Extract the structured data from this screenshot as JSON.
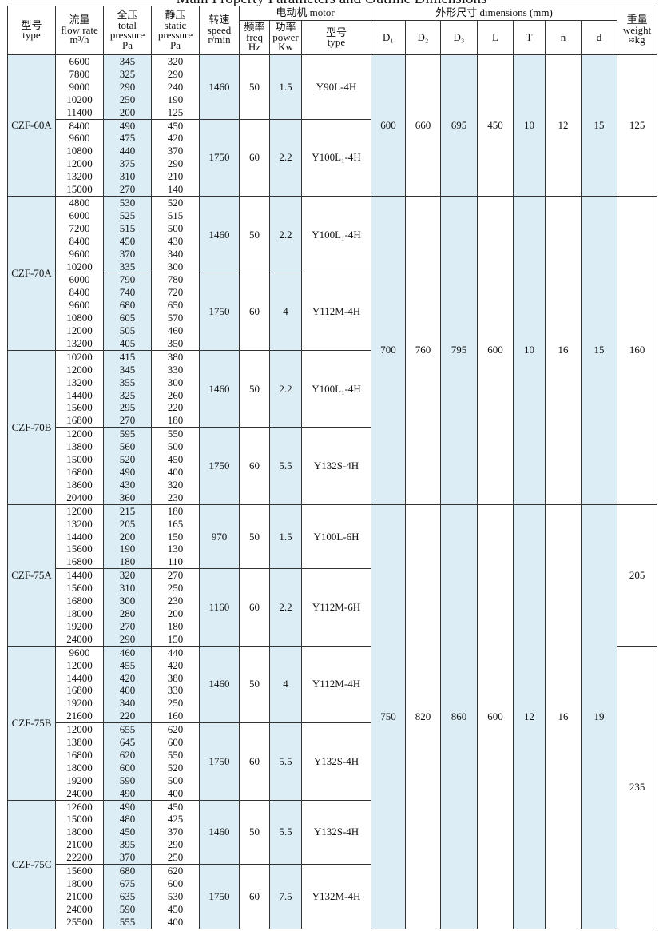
{
  "title": "Main Property Parameters and Outline Dimensions",
  "header": {
    "type": [
      "型号",
      "type"
    ],
    "flow": [
      "流量",
      "flow rate",
      "m³/h"
    ],
    "total": [
      "全压",
      "total",
      "pressure",
      "Pa"
    ],
    "static": [
      "静压",
      "static",
      "pressure",
      "Pa"
    ],
    "speed": [
      "转速",
      "speed",
      "r/min"
    ],
    "motor": "电动机  motor",
    "freq": [
      "频率",
      "freq",
      "Hz"
    ],
    "power": [
      "功率",
      "power",
      "Kw"
    ],
    "motor_type": [
      "型号",
      "type"
    ],
    "dimensions": "外形尺寸     dimensions (mm)",
    "dim_cols": [
      "D₁",
      "D₂",
      "D₃",
      "L",
      "T",
      "n",
      "d"
    ],
    "weight": [
      "重量",
      "weight",
      "≈kg"
    ]
  },
  "groups": [
    {
      "dimensions": [
        600,
        660,
        695,
        450,
        10,
        12,
        15
      ],
      "weights": [
        {
          "weight": 125,
          "models": [
            {
              "type": "CZF-60A",
              "speeds": [
                {
                  "flow": [
                    6600,
                    7800,
                    9000,
                    10200,
                    11400
                  ],
                  "total": [
                    345,
                    325,
                    290,
                    250,
                    200
                  ],
                  "static": [
                    320,
                    290,
                    240,
                    190,
                    125
                  ],
                  "speed": 1460,
                  "freq": 50,
                  "power": 1.5,
                  "motor": "Y90L-4H"
                },
                {
                  "flow": [
                    8400,
                    9600,
                    10800,
                    12000,
                    13200,
                    15000
                  ],
                  "total": [
                    490,
                    475,
                    440,
                    375,
                    310,
                    270
                  ],
                  "static": [
                    450,
                    420,
                    370,
                    290,
                    210,
                    140
                  ],
                  "speed": 1750,
                  "freq": 60,
                  "power": 2.2,
                  "motor": "Y100L₁-4H"
                }
              ]
            }
          ]
        }
      ]
    },
    {
      "dimensions": [
        700,
        760,
        795,
        600,
        10,
        16,
        15
      ],
      "weights": [
        {
          "weight": 160,
          "models": [
            {
              "type": "CZF-70A",
              "speeds": [
                {
                  "flow": [
                    4800,
                    6000,
                    7200,
                    8400,
                    9600,
                    10200
                  ],
                  "total": [
                    530,
                    525,
                    515,
                    450,
                    370,
                    335
                  ],
                  "static": [
                    520,
                    515,
                    500,
                    430,
                    340,
                    300
                  ],
                  "speed": 1460,
                  "freq": 50,
                  "power": 2.2,
                  "motor": "Y100L₁-4H"
                },
                {
                  "flow": [
                    6000,
                    8400,
                    9600,
                    10800,
                    12000,
                    13200
                  ],
                  "total": [
                    790,
                    740,
                    680,
                    605,
                    505,
                    405
                  ],
                  "static": [
                    780,
                    720,
                    650,
                    570,
                    460,
                    350
                  ],
                  "speed": 1750,
                  "freq": 60,
                  "power": 4,
                  "motor": "Y112M-4H"
                }
              ]
            },
            {
              "type": "CZF-70B",
              "speeds": [
                {
                  "flow": [
                    10200,
                    12000,
                    13200,
                    14400,
                    15600,
                    16800
                  ],
                  "total": [
                    415,
                    345,
                    355,
                    325,
                    295,
                    270
                  ],
                  "static": [
                    380,
                    330,
                    300,
                    260,
                    220,
                    180
                  ],
                  "speed": 1460,
                  "freq": 50,
                  "power": 2.2,
                  "motor": "Y100L₁-4H"
                },
                {
                  "flow": [
                    12000,
                    13800,
                    15000,
                    16800,
                    18600,
                    20400
                  ],
                  "total": [
                    595,
                    560,
                    520,
                    490,
                    430,
                    360
                  ],
                  "static": [
                    550,
                    500,
                    450,
                    400,
                    320,
                    230
                  ],
                  "speed": 1750,
                  "freq": 60,
                  "power": 5.5,
                  "motor": "Y132S-4H"
                }
              ]
            }
          ]
        }
      ]
    },
    {
      "dimensions": [
        750,
        820,
        860,
        600,
        12,
        16,
        19
      ],
      "weights": [
        {
          "weight": 205,
          "models": [
            {
              "type": "CZF-75A",
              "speeds": [
                {
                  "flow": [
                    12000,
                    13200,
                    14400,
                    15600,
                    16800
                  ],
                  "total": [
                    215,
                    205,
                    200,
                    190,
                    180
                  ],
                  "static": [
                    180,
                    165,
                    150,
                    130,
                    110
                  ],
                  "speed": 970,
                  "freq": 50,
                  "power": 1.5,
                  "motor": "Y100L-6H"
                },
                {
                  "flow": [
                    14400,
                    15600,
                    16800,
                    18000,
                    19200,
                    24000
                  ],
                  "total": [
                    320,
                    310,
                    300,
                    280,
                    270,
                    290
                  ],
                  "static": [
                    270,
                    250,
                    230,
                    200,
                    180,
                    150
                  ],
                  "speed": 1160,
                  "freq": 60,
                  "power": 2.2,
                  "motor": "Y112M-6H"
                }
              ]
            }
          ]
        },
        {
          "weight": 235,
          "models": [
            {
              "type": "CZF-75B",
              "speeds": [
                {
                  "flow": [
                    9600,
                    12000,
                    14400,
                    16800,
                    19200,
                    21600
                  ],
                  "total": [
                    460,
                    455,
                    420,
                    400,
                    340,
                    220
                  ],
                  "static": [
                    440,
                    420,
                    380,
                    330,
                    250,
                    160
                  ],
                  "speed": 1460,
                  "freq": 50,
                  "power": 4,
                  "motor": "Y112M-4H"
                },
                {
                  "flow": [
                    12000,
                    13800,
                    16800,
                    18000,
                    19200,
                    24000
                  ],
                  "total": [
                    655,
                    645,
                    620,
                    600,
                    590,
                    490
                  ],
                  "static": [
                    620,
                    600,
                    550,
                    520,
                    500,
                    400
                  ],
                  "speed": 1750,
                  "freq": 60,
                  "power": 5.5,
                  "motor": "Y132S-4H"
                }
              ]
            },
            {
              "type": "CZF-75C",
              "speeds": [
                {
                  "flow": [
                    12600,
                    15000,
                    18000,
                    21000,
                    22200
                  ],
                  "total": [
                    490,
                    480,
                    450,
                    395,
                    370
                  ],
                  "static": [
                    450,
                    425,
                    370,
                    290,
                    250
                  ],
                  "speed": 1460,
                  "freq": 50,
                  "power": 5.5,
                  "motor": "Y132S-4H"
                },
                {
                  "flow": [
                    15600,
                    18000,
                    21000,
                    24000,
                    25500
                  ],
                  "total": [
                    680,
                    675,
                    635,
                    590,
                    555
                  ],
                  "static": [
                    620,
                    600,
                    530,
                    450,
                    400
                  ],
                  "speed": 1750,
                  "freq": 60,
                  "power": 7.5,
                  "motor": "Y132M-4H"
                }
              ]
            }
          ]
        }
      ]
    }
  ]
}
